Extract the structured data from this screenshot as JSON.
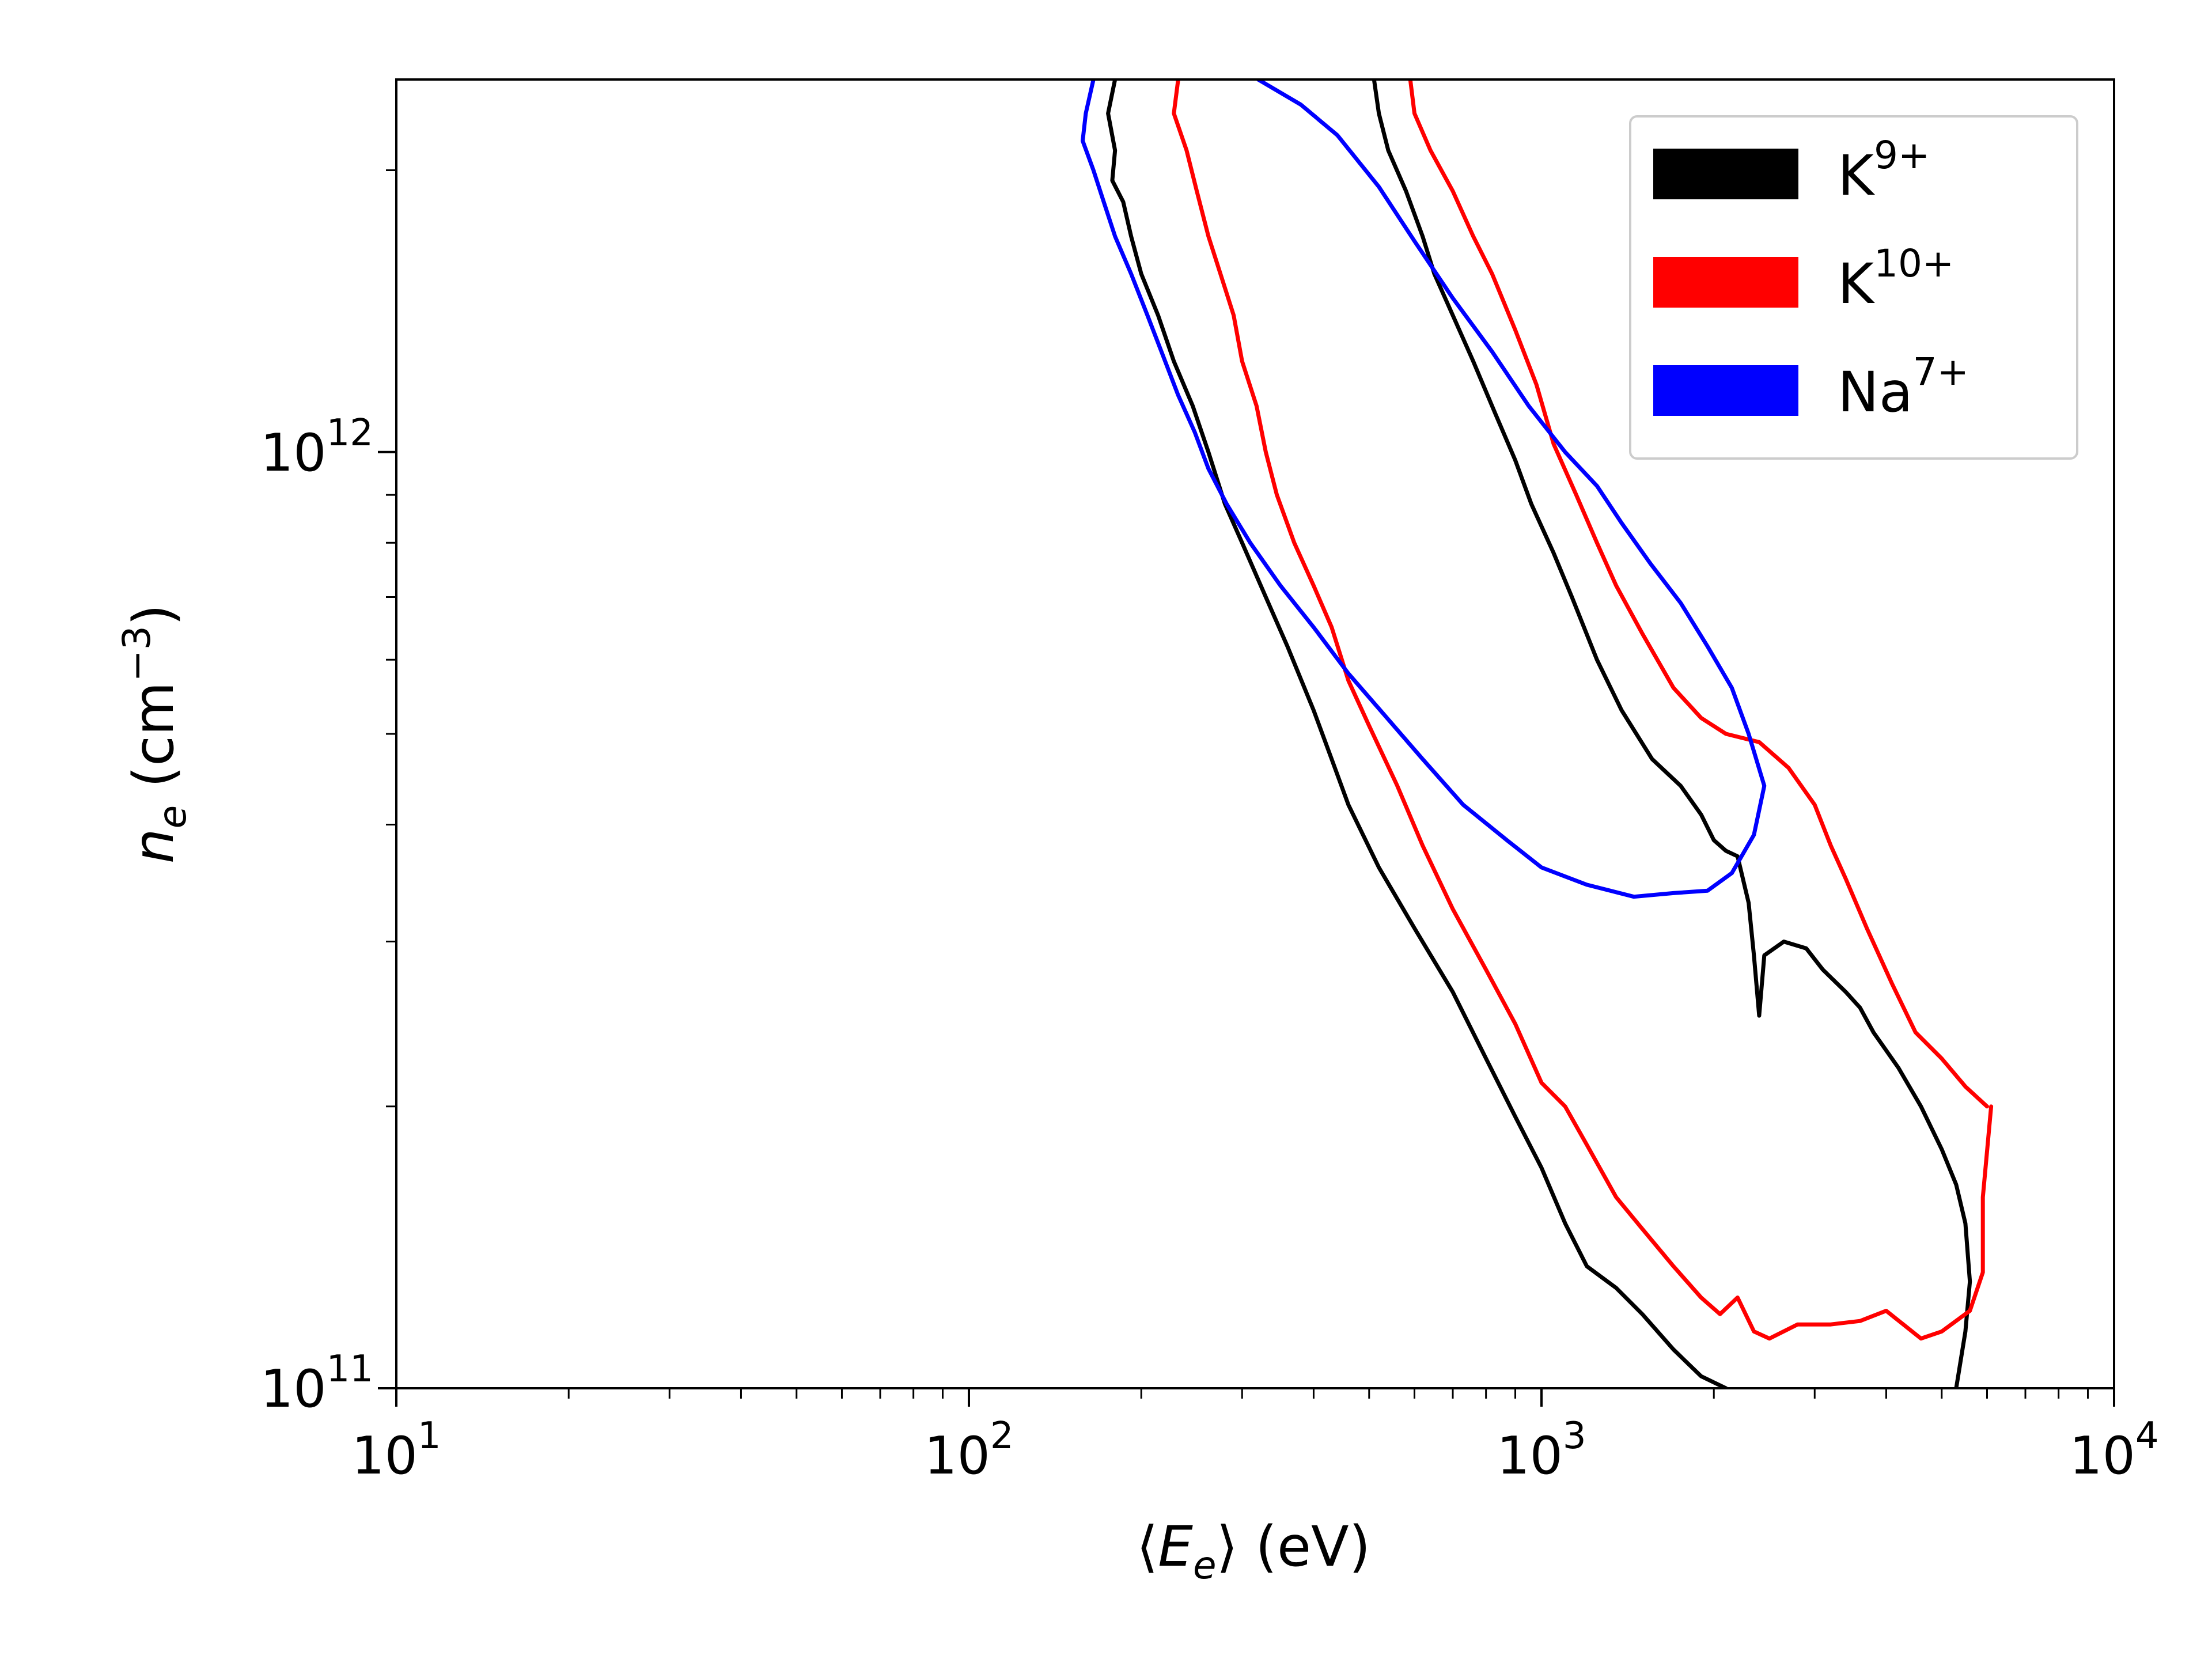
{
  "chart_data": {
    "type": "line",
    "x_scale": "log",
    "y_scale": "log",
    "xlim": [
      10,
      10000
    ],
    "ylim": [
      100000000000,
      2500000000000
    ],
    "xlabel_parts": {
      "open": "⟨",
      "sym": "E",
      "sub": "e",
      "close": "⟩",
      "unit": " (eV)"
    },
    "ylabel_parts": {
      "sym": "n",
      "sub": "e",
      "unit_pre": " (cm",
      "unit_exp": "−3",
      "unit_post": ")"
    },
    "x_ticks": [
      {
        "value": 10,
        "base": "10",
        "exp": "1"
      },
      {
        "value": 100,
        "base": "10",
        "exp": "2"
      },
      {
        "value": 1000,
        "base": "10",
        "exp": "3"
      },
      {
        "value": 10000,
        "base": "10",
        "exp": "4"
      }
    ],
    "y_ticks": [
      {
        "value": 100000000000,
        "base": "10",
        "exp": "11"
      },
      {
        "value": 1000000000000,
        "base": "10",
        "exp": "12"
      }
    ],
    "legend": {
      "placement": "top-right"
    },
    "series": [
      {
        "name_base": "K",
        "name_exp": "9+",
        "color": "#000000",
        "contours": [
          [
            [
              180,
              2500000000000
            ],
            [
              175,
              2300000000000
            ],
            [
              180,
              2100000000000
            ],
            [
              178,
              1950000000000
            ],
            [
              186,
              1850000000000
            ],
            [
              192,
              1700000000000
            ],
            [
              200,
              1550000000000
            ],
            [
              214,
              1400000000000
            ],
            [
              228,
              1250000000000
            ],
            [
              246,
              1120000000000
            ],
            [
              262,
              1000000000000
            ],
            [
              280,
              880000000000
            ],
            [
              300,
              800000000000
            ],
            [
              330,
              700000000000
            ],
            [
              360,
              620000000000
            ],
            [
              400,
              530000000000
            ],
            [
              430,
              470000000000
            ],
            [
              460,
              420000000000
            ],
            [
              520,
              360000000000
            ],
            [
              600,
              310000000000
            ],
            [
              700,
              265000000000
            ],
            [
              800,
              225000000000
            ],
            [
              900,
              195000000000
            ],
            [
              1000,
              172000000000
            ],
            [
              1100,
              150000000000
            ],
            [
              1200,
              135000000000
            ],
            [
              1350,
              128000000000
            ],
            [
              1500,
              120000000000
            ],
            [
              1700,
              110000000000
            ],
            [
              1900,
              103000000000
            ],
            [
              2100,
              100000000000
            ]
          ],
          [
            [
              510,
              2500000000000
            ],
            [
              520,
              2300000000000
            ],
            [
              540,
              2100000000000
            ],
            [
              580,
              1900000000000
            ],
            [
              620,
              1700000000000
            ],
            [
              650,
              1550000000000
            ],
            [
              700,
              1400000000000
            ],
            [
              760,
              1250000000000
            ],
            [
              830,
              1100000000000
            ],
            [
              900,
              980000000000
            ],
            [
              960,
              880000000000
            ],
            [
              1050,
              780000000000
            ],
            [
              1130,
              700000000000
            ],
            [
              1250,
              600000000000
            ],
            [
              1380,
              530000000000
            ],
            [
              1560,
              470000000000
            ],
            [
              1750,
              440000000000
            ],
            [
              1900,
              410000000000
            ],
            [
              2000,
              385000000000
            ],
            [
              2100,
              375000000000
            ],
            [
              2200,
              370000000000
            ],
            [
              2300,
              330000000000
            ],
            [
              2350,
              290000000000
            ],
            [
              2400,
              250000000000
            ],
            [
              2450,
              290000000000
            ],
            [
              2650,
              300000000000
            ],
            [
              2900,
              295000000000
            ],
            [
              3100,
              280000000000
            ],
            [
              3400,
              265000000000
            ],
            [
              3600,
              255000000000
            ],
            [
              3800,
              240000000000
            ],
            [
              4200,
              220000000000
            ],
            [
              4600,
              200000000000
            ],
            [
              5000,
              180000000000
            ],
            [
              5300,
              165000000000
            ],
            [
              5500,
              150000000000
            ],
            [
              5600,
              130000000000
            ],
            [
              5500,
              115000000000
            ],
            [
              5300,
              100000000000
            ]
          ]
        ]
      },
      {
        "name_base": "K",
        "name_exp": "10+",
        "color": "#ff0000",
        "contours": [
          [
            [
              232,
              2500000000000
            ],
            [
              228,
              2300000000000
            ],
            [
              240,
              2100000000000
            ],
            [
              250,
              1900000000000
            ],
            [
              262,
              1700000000000
            ],
            [
              275,
              1550000000000
            ],
            [
              290,
              1400000000000
            ],
            [
              300,
              1250000000000
            ],
            [
              318,
              1120000000000
            ],
            [
              330,
              1000000000000
            ],
            [
              345,
              900000000000
            ],
            [
              370,
              800000000000
            ],
            [
              400,
              720000000000
            ],
            [
              430,
              650000000000
            ],
            [
              460,
              570000000000
            ],
            [
              500,
              510000000000
            ],
            [
              560,
              440000000000
            ],
            [
              620,
              380000000000
            ],
            [
              700,
              325000000000
            ],
            [
              800,
              280000000000
            ],
            [
              900,
              245000000000
            ],
            [
              1000,
              212000000000
            ],
            [
              1100,
              200000000000
            ],
            [
              1200,
              182000000000
            ],
            [
              1350,
              160000000000
            ],
            [
              1500,
              148000000000
            ],
            [
              1700,
              135000000000
            ],
            [
              1900,
              125000000000
            ],
            [
              2050,
              120000000000
            ],
            [
              2200,
              125000000000
            ],
            [
              2350,
              115000000000
            ],
            [
              2500,
              113000000000
            ],
            [
              2800,
              117000000000
            ],
            [
              3200,
              117000000000
            ],
            [
              3600,
              118000000000
            ],
            [
              4000,
              121000000000
            ],
            [
              4600,
              113000000000
            ],
            [
              5000,
              115000000000
            ],
            [
              5600,
              121000000000
            ],
            [
              5900,
              133000000000
            ],
            [
              5900,
              160000000000
            ],
            [
              6100,
              200000000000
            ]
          ],
          [
            [
              590,
              2500000000000
            ],
            [
              600,
              2300000000000
            ],
            [
              640,
              2100000000000
            ],
            [
              700,
              1900000000000
            ],
            [
              760,
              1700000000000
            ],
            [
              820,
              1550000000000
            ],
            [
              900,
              1350000000000
            ],
            [
              980,
              1180000000000
            ],
            [
              1050,
              1020000000000
            ],
            [
              1150,
              900000000000
            ],
            [
              1250,
              800000000000
            ],
            [
              1350,
              720000000000
            ],
            [
              1500,
              640000000000
            ],
            [
              1700,
              560000000000
            ],
            [
              1900,
              520000000000
            ],
            [
              2100,
              500000000000
            ],
            [
              2400,
              490000000000
            ],
            [
              2700,
              460000000000
            ],
            [
              3000,
              420000000000
            ],
            [
              3200,
              380000000000
            ],
            [
              3400,
              350000000000
            ],
            [
              3700,
              310000000000
            ],
            [
              4100,
              270000000000
            ],
            [
              4500,
              240000000000
            ],
            [
              5000,
              225000000000
            ],
            [
              5500,
              210000000000
            ],
            [
              6000,
              200000000000
            ]
          ]
        ]
      },
      {
        "name_base": "Na",
        "name_exp": "7+",
        "color": "#0000ff",
        "contours": [
          [
            [
              165,
              2500000000000
            ],
            [
              160,
              2300000000000
            ],
            [
              158,
              2150000000000
            ],
            [
              165,
              2000000000000
            ],
            [
              172,
              1850000000000
            ],
            [
              180,
              1700000000000
            ],
            [
              192,
              1550000000000
            ],
            [
              205,
              1400000000000
            ],
            [
              218,
              1270000000000
            ],
            [
              232,
              1150000000000
            ],
            [
              248,
              1050000000000
            ],
            [
              262,
              960000000000
            ],
            [
              282,
              880000000000
            ],
            [
              310,
              800000000000
            ],
            [
              350,
              720000000000
            ],
            [
              400,
              650000000000
            ],
            [
              460,
              580000000000
            ],
            [
              530,
              525000000000
            ],
            [
              620,
              470000000000
            ],
            [
              730,
              420000000000
            ],
            [
              870,
              385000000000
            ],
            [
              1000,
              360000000000
            ],
            [
              1200,
              345000000000
            ],
            [
              1450,
              335000000000
            ],
            [
              1700,
              338000000000
            ],
            [
              1950,
              340000000000
            ],
            [
              2150,
              355000000000
            ],
            [
              2350,
              390000000000
            ],
            [
              2450,
              440000000000
            ],
            [
              2300,
              500000000000
            ],
            [
              2150,
              560000000000
            ],
            [
              1950,
              620000000000
            ],
            [
              1750,
              690000000000
            ],
            [
              1550,
              760000000000
            ],
            [
              1380,
              840000000000
            ],
            [
              1250,
              920000000000
            ],
            [
              1100,
              1000000000000
            ],
            [
              950,
              1120000000000
            ],
            [
              820,
              1280000000000
            ],
            [
              700,
              1460000000000
            ],
            [
              600,
              1680000000000
            ],
            [
              520,
              1920000000000
            ],
            [
              440,
              2180000000000
            ],
            [
              380,
              2350000000000
            ],
            [
              320,
              2500000000000
            ]
          ]
        ]
      }
    ]
  }
}
